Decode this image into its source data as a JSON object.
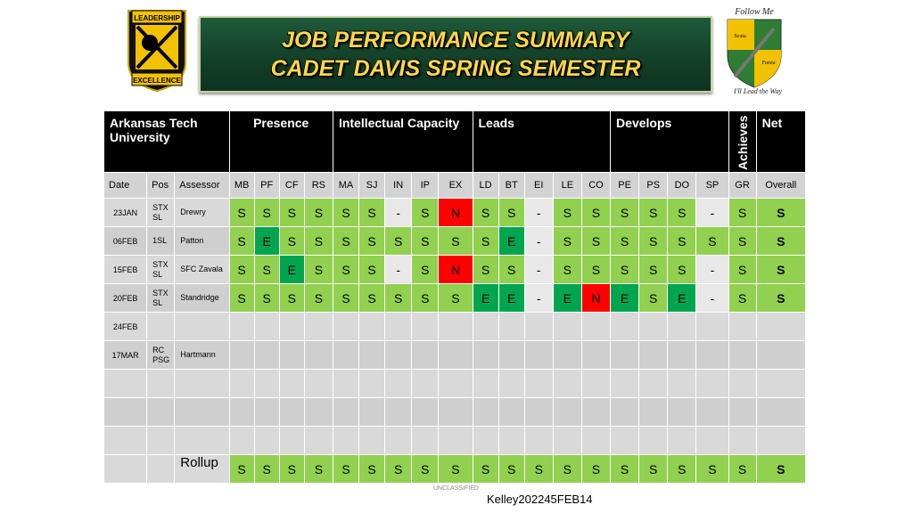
{
  "banner": {
    "line1": "JOB PERFORMANCE SUMMARY",
    "line2": "CADET DAVIS SPRING SEMESTER"
  },
  "logo_left": {
    "top_text": "LEADERSHIP",
    "bottom_text": "EXCELLENCE"
  },
  "logo_right": {
    "top_text": "Follow Me",
    "left_text": "Scuta",
    "right_text": "Forsia",
    "bottom_text": "I'll Lead the Way"
  },
  "table": {
    "groups": {
      "org": "Arkansas Tech University",
      "presence": "Presence",
      "intellectual": "Intellectual Capacity",
      "leads": "Leads",
      "develops": "Develops",
      "achieves": "Achieves",
      "net": "Net"
    },
    "subheaders": [
      "Date",
      "Pos",
      "Assessor",
      "MB",
      "PF",
      "CF",
      "RS",
      "MA",
      "SJ",
      "IN",
      "IP",
      "EX",
      "LD",
      "BT",
      "EI",
      "LE",
      "CO",
      "PE",
      "PS",
      "DO",
      "SP",
      "GR",
      "Overall"
    ],
    "rows": [
      {
        "date": "23JAN",
        "pos": "STX SL",
        "assessor": "Drewry",
        "scores": [
          "S",
          "S",
          "S",
          "S",
          "S",
          "S",
          "-",
          "S",
          "N",
          "S",
          "S",
          "-",
          "S",
          "S",
          "S",
          "S",
          "S",
          "-",
          "S"
        ],
        "overall": "S"
      },
      {
        "date": "06FEB",
        "pos": "1SL",
        "assessor": "Patton",
        "scores": [
          "S",
          "E",
          "S",
          "S",
          "S",
          "S",
          "S",
          "S",
          "S",
          "S",
          "E",
          "-",
          "S",
          "S",
          "S",
          "S",
          "S",
          "S",
          "S"
        ],
        "overall": "S"
      },
      {
        "date": "15FEB",
        "pos": "STX SL",
        "assessor": "SFC Zavala",
        "scores": [
          "S",
          "S",
          "E",
          "S",
          "S",
          "S",
          "-",
          "S",
          "N",
          "S",
          "S",
          "-",
          "S",
          "S",
          "S",
          "S",
          "S",
          "-",
          "S"
        ],
        "overall": "S"
      },
      {
        "date": "20FEB",
        "pos": "STX SL",
        "assessor": "Standridge",
        "scores": [
          "S",
          "S",
          "S",
          "S",
          "S",
          "S",
          "S",
          "S",
          "S",
          "E",
          "E",
          "-",
          "E",
          "N",
          "E",
          "S",
          "E",
          "-",
          "S"
        ],
        "overall": "S"
      },
      {
        "date": "24FEB",
        "pos": "",
        "assessor": "",
        "scores": [],
        "overall": ""
      },
      {
        "date": "17MAR",
        "pos": "RC PSG",
        "assessor": "Hartmann",
        "scores": [],
        "overall": ""
      },
      {
        "date": "",
        "pos": "",
        "assessor": "",
        "scores": [],
        "overall": ""
      },
      {
        "date": "",
        "pos": "",
        "assessor": "",
        "scores": [],
        "overall": ""
      },
      {
        "date": "",
        "pos": "",
        "assessor": "",
        "scores": [],
        "overall": ""
      }
    ],
    "rollup": {
      "label": "Rollup",
      "scores": [
        "S",
        "S",
        "S",
        "S",
        "S",
        "S",
        "S",
        "S",
        "S",
        "S",
        "S",
        "S",
        "S",
        "S",
        "S",
        "S",
        "S",
        "S",
        "S"
      ],
      "overall": "S"
    }
  },
  "colors": {
    "standard": "#92d050",
    "excellent": "#00a64f",
    "needs_improvement": "#ff0000",
    "header": "#000000"
  },
  "footer": {
    "classification": "UNCLASSIFIED",
    "id": "Kelley202245FEB14"
  }
}
